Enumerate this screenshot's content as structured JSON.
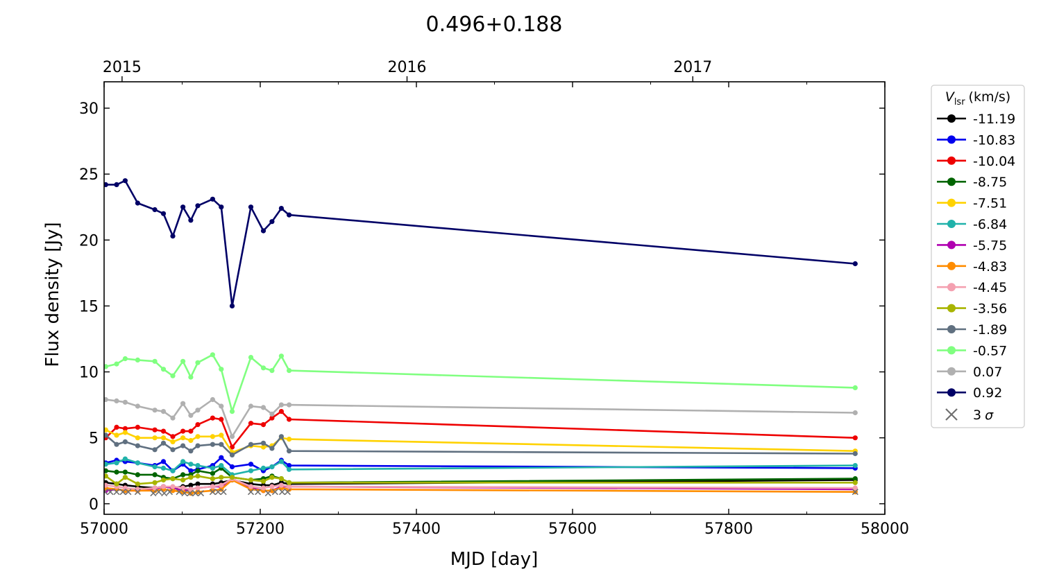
{
  "chart_data": {
    "type": "line",
    "title": "0.496+0.188",
    "xlabel": "MJD [day]",
    "ylabel": "Flux density [Jy]",
    "xlim": [
      57000,
      58000
    ],
    "ylim": [
      -0.8,
      32
    ],
    "x_ticks": [
      57000,
      57200,
      57400,
      57600,
      57800,
      58000
    ],
    "x_tick_labels": [
      "57000",
      "57200",
      "57400",
      "57600",
      "57800",
      "58000"
    ],
    "y_ticks": [
      0,
      5,
      10,
      15,
      20,
      25,
      30
    ],
    "y_tick_labels": [
      "0",
      "5",
      "10",
      "15",
      "20",
      "25",
      "30"
    ],
    "top_axis": {
      "tick_values": [
        57023,
        57388,
        57754
      ],
      "tick_labels": [
        "2015",
        "2016",
        "2017"
      ]
    },
    "legend": {
      "title_var": "V",
      "title_sub": "lsr",
      "title_unit": "(km/s)",
      "position": "outside-right",
      "sigma_label_num": "3",
      "sigma_label_sym": "σ"
    },
    "x": [
      57002,
      57016,
      57027,
      57043,
      57065,
      57076,
      57088,
      57101,
      57111,
      57120,
      57139,
      57150,
      57164,
      57188,
      57204,
      57215,
      57227,
      57237,
      57962
    ],
    "series": [
      {
        "name": "-11.19",
        "color": "#000000",
        "values": [
          1.6,
          1.5,
          1.4,
          1.3,
          1.2,
          1.3,
          1.2,
          1.3,
          1.4,
          1.5,
          1.5,
          1.6,
          1.8,
          1.5,
          1.4,
          1.4,
          1.6,
          1.5,
          1.8
        ]
      },
      {
        "name": "-10.83",
        "color": "#0000ee",
        "values": [
          3.1,
          3.3,
          3.2,
          3.1,
          2.9,
          3.2,
          2.5,
          3.0,
          2.5,
          2.6,
          2.9,
          3.5,
          2.8,
          3.0,
          2.5,
          2.8,
          3.3,
          2.9,
          2.7
        ]
      },
      {
        "name": "-10.04",
        "color": "#ee0000",
        "values": [
          5.0,
          5.8,
          5.7,
          5.8,
          5.6,
          5.5,
          5.1,
          5.5,
          5.5,
          6.0,
          6.5,
          6.4,
          4.3,
          6.1,
          6.0,
          6.5,
          7.0,
          6.4,
          5.0
        ]
      },
      {
        "name": "-8.75",
        "color": "#006400",
        "values": [
          2.5,
          2.4,
          2.4,
          2.2,
          2.2,
          2.0,
          1.9,
          2.2,
          2.2,
          2.5,
          2.3,
          2.7,
          2.0,
          1.8,
          1.9,
          2.1,
          1.9,
          1.6,
          1.9
        ]
      },
      {
        "name": "-7.51",
        "color": "#ffd200",
        "values": [
          5.6,
          5.2,
          5.4,
          5.0,
          5.0,
          5.0,
          4.7,
          5.0,
          4.8,
          5.1,
          5.1,
          5.2,
          3.9,
          4.4,
          4.3,
          4.4,
          5.0,
          4.9,
          4.0
        ]
      },
      {
        "name": "-6.84",
        "color": "#20b2aa",
        "values": [
          3.0,
          3.1,
          3.4,
          3.1,
          2.8,
          2.7,
          2.5,
          3.2,
          3.0,
          2.9,
          2.7,
          2.9,
          2.2,
          2.5,
          2.7,
          2.8,
          3.2,
          2.6,
          2.9
        ]
      },
      {
        "name": "-5.75",
        "color": "#b000b0",
        "values": [
          1.0,
          1.1,
          1.0,
          1.0,
          1.1,
          1.3,
          1.2,
          1.0,
          1.1,
          1.2,
          1.3,
          1.3,
          1.9,
          1.2,
          1.0,
          1.0,
          1.3,
          1.3,
          1.1
        ]
      },
      {
        "name": "-4.83",
        "color": "#ff8c00",
        "values": [
          1.2,
          1.1,
          1.0,
          1.0,
          1.0,
          1.1,
          1.0,
          0.9,
          0.8,
          0.9,
          1.0,
          1.1,
          1.8,
          1.1,
          1.0,
          1.0,
          1.2,
          1.1,
          0.9
        ]
      },
      {
        "name": "-4.45",
        "color": "#f4a0b0",
        "values": [
          1.4,
          1.3,
          1.2,
          1.1,
          1.2,
          1.3,
          1.3,
          1.2,
          1.1,
          1.2,
          1.3,
          1.4,
          1.9,
          1.3,
          1.2,
          1.3,
          1.4,
          1.3,
          1.2
        ]
      },
      {
        "name": "-3.56",
        "color": "#a8b400",
        "values": [
          2.1,
          1.5,
          2.0,
          1.5,
          1.6,
          1.8,
          1.9,
          1.8,
          2.0,
          2.1,
          1.9,
          2.0,
          2.0,
          1.8,
          1.7,
          2.0,
          1.9,
          1.6,
          1.6
        ]
      },
      {
        "name": "-1.89",
        "color": "#607080",
        "values": [
          5.2,
          4.5,
          4.7,
          4.4,
          4.1,
          4.6,
          4.1,
          4.4,
          4.0,
          4.4,
          4.5,
          4.5,
          3.7,
          4.5,
          4.6,
          4.2,
          5.1,
          4.0,
          3.8
        ]
      },
      {
        "name": "-0.57",
        "color": "#80ff80",
        "values": [
          10.4,
          10.6,
          11.0,
          10.9,
          10.8,
          10.2,
          9.7,
          10.8,
          9.6,
          10.7,
          11.3,
          10.2,
          7.0,
          11.1,
          10.3,
          10.1,
          11.2,
          10.1,
          8.8
        ]
      },
      {
        "name": "0.07",
        "color": "#b0b0b0",
        "values": [
          7.9,
          7.8,
          7.7,
          7.4,
          7.1,
          7.0,
          6.5,
          7.6,
          6.7,
          7.1,
          7.9,
          7.4,
          5.1,
          7.4,
          7.3,
          6.8,
          7.5,
          7.5,
          6.9
        ]
      },
      {
        "name": "0.92",
        "color": "#000066",
        "values": [
          24.2,
          24.2,
          24.5,
          22.8,
          22.3,
          22.0,
          20.3,
          22.5,
          21.5,
          22.6,
          23.1,
          22.5,
          15.0,
          22.5,
          20.7,
          21.4,
          22.4,
          21.9,
          18.2
        ]
      }
    ],
    "sigma_3": {
      "color": "#707070",
      "x": [
        57001,
        57008,
        57016,
        57024,
        57031,
        57043,
        57063,
        57070,
        57077,
        57084,
        57096,
        57103,
        57110,
        57117,
        57124,
        57139,
        57146,
        57153,
        57188,
        57197,
        57210,
        57219,
        57228,
        57235,
        57962
      ],
      "y": [
        0.9,
        0.9,
        0.9,
        0.9,
        0.9,
        0.9,
        0.8,
        0.9,
        0.8,
        0.9,
        0.9,
        0.8,
        0.8,
        0.8,
        0.8,
        0.9,
        0.9,
        0.9,
        0.9,
        0.9,
        0.8,
        0.9,
        0.9,
        0.9,
        0.9
      ]
    }
  }
}
